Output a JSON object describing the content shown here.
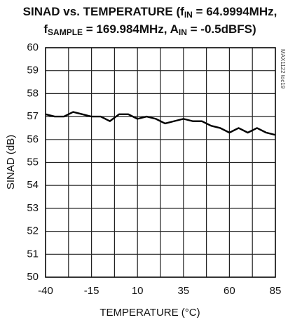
{
  "chart_data": {
    "type": "line",
    "title_lines": [
      [
        {
          "text": "SINAD vs. TEMPERATURE (f"
        },
        {
          "text": "IN",
          "sub": true
        },
        {
          "text": " = 64.9994MHz,"
        }
      ],
      [
        {
          "text": "f"
        },
        {
          "text": "SAMPLE",
          "sub": true
        },
        {
          "text": " = 169.984MHz, A"
        },
        {
          "text": "IN",
          "sub": true
        },
        {
          "text": " = -0.5dBFS)"
        }
      ]
    ],
    "annotation": "MAX1122 toc19",
    "x_label": "TEMPERATURE (°C)",
    "y_label": "SINAD (dB)",
    "x": [
      -40,
      -35,
      -30,
      -25,
      -20,
      -15,
      -10,
      -5,
      0,
      5,
      10,
      15,
      20,
      25,
      30,
      35,
      40,
      45,
      50,
      55,
      60,
      65,
      70,
      75,
      80,
      85
    ],
    "series": [
      {
        "color": "#000000",
        "values": [
          57.1,
          57.0,
          57.0,
          57.2,
          57.1,
          57.0,
          57.0,
          56.8,
          57.1,
          57.1,
          56.9,
          57.0,
          56.9,
          56.7,
          56.8,
          56.9,
          56.8,
          56.8,
          56.6,
          56.5,
          56.3,
          56.5,
          56.3,
          56.5,
          56.3,
          56.2
        ]
      }
    ],
    "xlim": [
      -40,
      85
    ],
    "xticks": [
      -40,
      -15,
      10,
      35,
      60,
      85
    ],
    "x_minor_grid": [
      -27.5,
      -2.5,
      22.5,
      47.5,
      72.5
    ],
    "ylim": [
      50,
      60
    ],
    "yticks": [
      50,
      51,
      52,
      53,
      54,
      55,
      56,
      57,
      58,
      59,
      60
    ],
    "grid": true
  }
}
